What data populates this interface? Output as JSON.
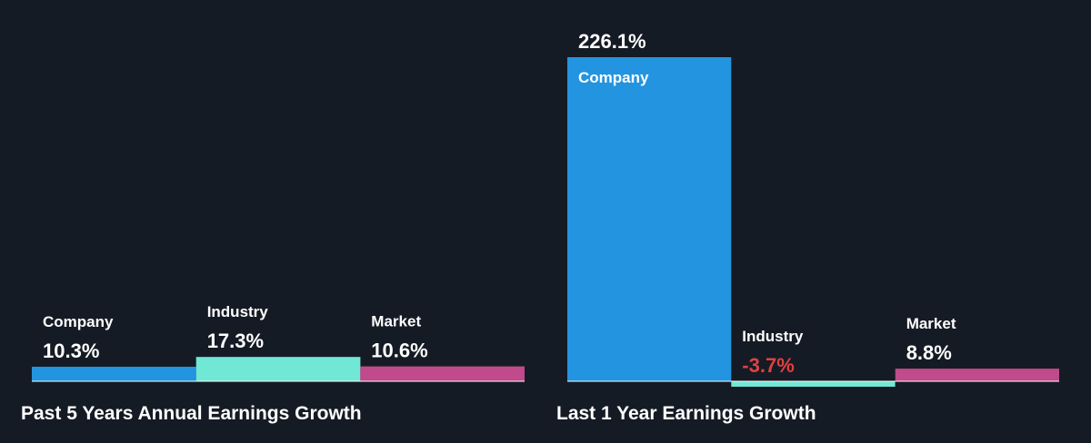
{
  "colors": {
    "background": "#151b24",
    "company": "#2394df",
    "industry": "#71e7d6",
    "market": "#c04a8b",
    "axis": "#ffffff",
    "label": "#ffffff",
    "negative": "#e0413f"
  },
  "chart_data": [
    {
      "type": "bar",
      "title": "Past 5 Years Annual Earnings Growth",
      "categories": [
        "Company",
        "Industry",
        "Market"
      ],
      "values": [
        10.3,
        17.3,
        10.6
      ],
      "value_labels": [
        "10.3%",
        "17.3%",
        "10.6%"
      ],
      "unit": "%",
      "grid": false,
      "legend": "none"
    },
    {
      "type": "bar",
      "title": "Last 1 Year Earnings Growth",
      "categories": [
        "Company",
        "Industry",
        "Market"
      ],
      "values": [
        226.1,
        -3.7,
        8.8
      ],
      "value_labels": [
        "226.1%",
        "-3.7%",
        "8.8%"
      ],
      "unit": "%",
      "grid": false,
      "legend": "none"
    }
  ]
}
